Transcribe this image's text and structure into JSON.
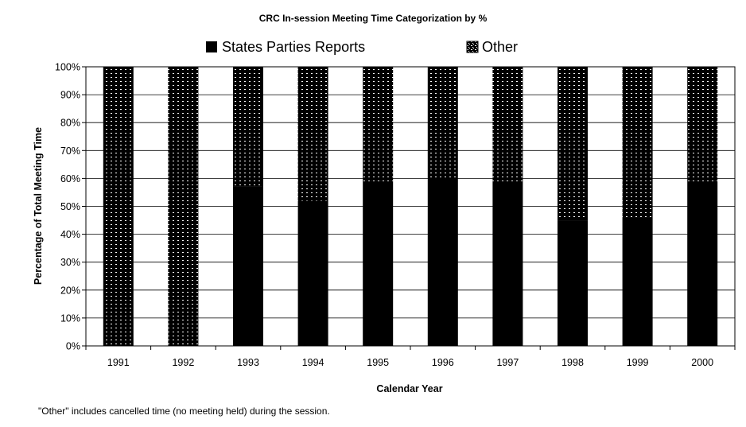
{
  "footnote": "\"Other\" includes cancelled time (no meeting held) during the session.",
  "chart_data": {
    "type": "bar",
    "stacked": true,
    "title": "CRC In-session Meeting Time Categorization by %",
    "xlabel": "Calendar Year",
    "ylabel": "Percentage of Total Meeting Time",
    "categories": [
      "1991",
      "1992",
      "1993",
      "1994",
      "1995",
      "1996",
      "1997",
      "1998",
      "1999",
      "2000"
    ],
    "series": [
      {
        "name": "States Parties Reports",
        "values": [
          0,
          0,
          57,
          52,
          59,
          60,
          59,
          45,
          46,
          59
        ],
        "color": "#000000",
        "pattern": "solid"
      },
      {
        "name": "Other",
        "values": [
          100,
          100,
          43,
          48,
          41,
          40,
          41,
          55,
          54,
          41
        ],
        "color": "#000000",
        "pattern": "dotted"
      }
    ],
    "ylim": [
      0,
      100
    ],
    "yticks": [
      "0%",
      "10%",
      "20%",
      "30%",
      "40%",
      "50%",
      "60%",
      "70%",
      "80%",
      "90%",
      "100%"
    ],
    "grid": true,
    "legend_position": "top"
  }
}
